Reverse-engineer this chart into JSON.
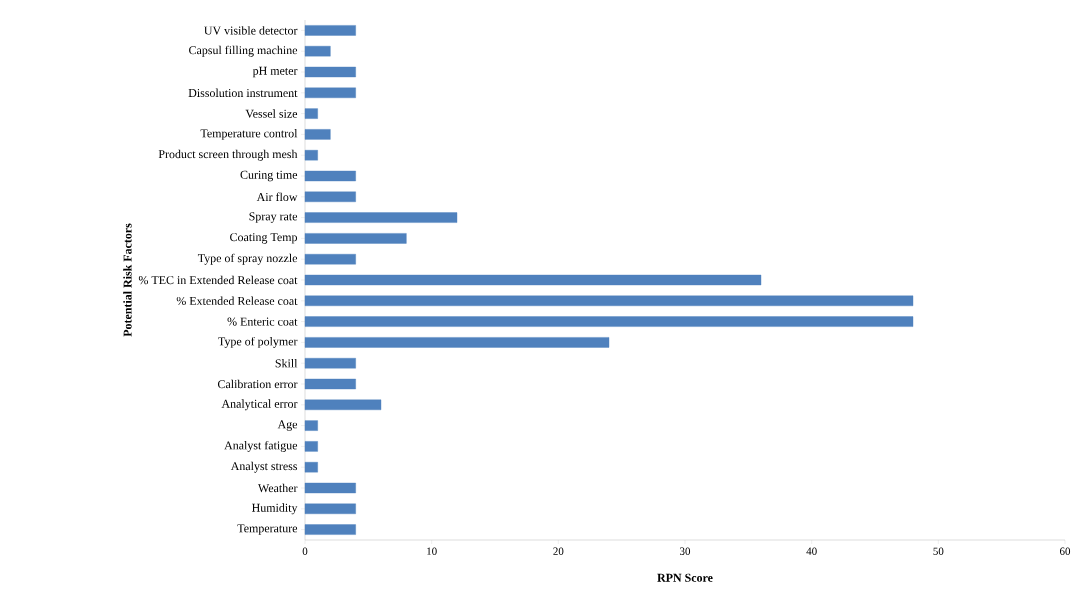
{
  "chart_data": {
    "type": "bar",
    "orientation": "horizontal",
    "xlabel": "RPN Score",
    "ylabel": "Potential Risk Factors",
    "categories": [
      "UV visible detector",
      "Capsul filling machine",
      "pH meter",
      "Dissolution instrument",
      "Vessel size",
      "Temperature control",
      "Product screen through mesh",
      "Curing time",
      "Air flow",
      "Spray rate",
      "Coating Temp",
      "Type of spray nozzle",
      "% TEC in  Extended Release coat",
      "% Extended Release coat",
      "% Enteric coat",
      "Type of polymer",
      "Skill",
      "Calibration error",
      "Analytical error",
      "Age",
      "Analyst fatigue",
      "Analyst stress",
      "Weather",
      "Humidity",
      "Temperature"
    ],
    "values": [
      4,
      2,
      4,
      4,
      1,
      2,
      1,
      4,
      4,
      12,
      8,
      4,
      36,
      48,
      48,
      24,
      4,
      4,
      6,
      1,
      1,
      1,
      4,
      4,
      4
    ],
    "color": "#4f81bd",
    "xlim": [
      0,
      60
    ],
    "xticks": [
      0,
      10,
      20,
      30,
      40,
      50,
      60
    ],
    "grid": false
  }
}
